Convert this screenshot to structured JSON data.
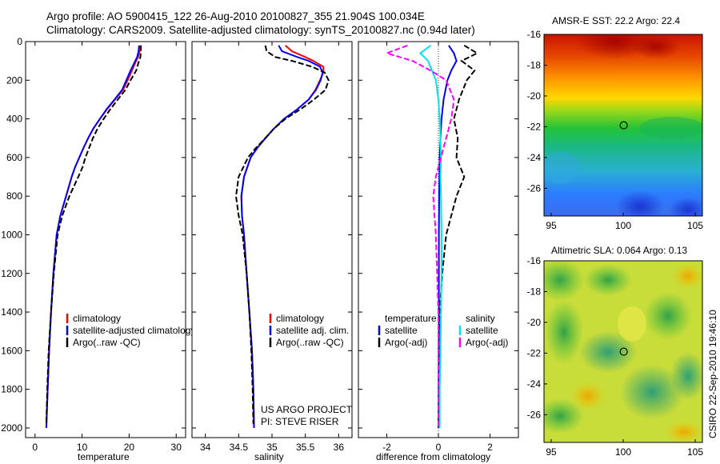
{
  "header": {
    "title_line1": "Argo profile: AO 5900415_122 26-Aug-2010 20100827_355 21.904S 100.034E",
    "title_line2": "Climatology: CARS2009. Satellite-adjusted climatology: synTS_20100827.nc (0.94d later)"
  },
  "side_label": "CSIRO 22-Sep-2010 19:46:10",
  "colors": {
    "climatology": "#ff0000",
    "satellite": "#0000ff",
    "argo": "#000000",
    "satellite_salinity": "#00e5ee",
    "argo_salinity": "#ff00ff"
  },
  "chart_data": [
    {
      "id": "temperature",
      "type": "line",
      "xlabel": "temperature",
      "xlim": [
        -2,
        32
      ],
      "ylim": [
        2050,
        0
      ],
      "xticks": [
        0,
        10,
        20,
        30
      ],
      "yticks": [
        0,
        200,
        400,
        600,
        800,
        1000,
        1200,
        1400,
        1600,
        1800,
        2000
      ],
      "legend": [
        "climatology",
        "satellite-adjusted climatology",
        "Argo(..raw -QC)"
      ],
      "series": [
        {
          "name": "climatology",
          "style": "solid",
          "color": "#ff0000",
          "x": [
            22.3,
            22.2,
            21.9,
            21.5,
            20.6,
            19.7,
            18.7,
            17.0,
            15.3,
            13.8,
            12.4,
            11.3,
            10.3,
            9.4,
            8.5,
            7.8,
            6.6,
            5.4,
            4.6,
            3.9,
            3.4,
            3.0,
            2.7,
            2.4
          ],
          "y": [
            20,
            50,
            80,
            100,
            150,
            200,
            250,
            300,
            350,
            400,
            450,
            500,
            550,
            600,
            650,
            700,
            800,
            900,
            1000,
            1200,
            1400,
            1600,
            1800,
            2000
          ]
        },
        {
          "name": "satellite-adjusted climatology",
          "style": "solid",
          "color": "#0000ff",
          "x": [
            22.1,
            22.0,
            21.7,
            21.3,
            20.3,
            19.4,
            18.5,
            16.9,
            15.2,
            13.8,
            12.4,
            11.3,
            10.3,
            9.4,
            8.5,
            7.8,
            6.6,
            5.4,
            4.6,
            3.9,
            3.4,
            3.0,
            2.7,
            2.4
          ],
          "y": [
            20,
            50,
            80,
            100,
            150,
            200,
            250,
            300,
            350,
            400,
            450,
            500,
            550,
            600,
            650,
            700,
            800,
            900,
            1000,
            1200,
            1400,
            1600,
            1800,
            2000
          ]
        },
        {
          "name": "Argo(..raw -QC)",
          "style": "dashed",
          "color": "#000000",
          "x": [
            22.5,
            22.5,
            22.4,
            22.1,
            21.5,
            20.3,
            19.2,
            17.6,
            16.0,
            14.6,
            13.3,
            12.3,
            11.5,
            10.7,
            10.1,
            9.2,
            7.3,
            5.8,
            4.8,
            4.0,
            3.4,
            2.9,
            2.6,
            2.4
          ],
          "y": [
            20,
            50,
            80,
            100,
            150,
            200,
            250,
            300,
            350,
            400,
            450,
            500,
            550,
            600,
            650,
            700,
            800,
            900,
            1000,
            1200,
            1400,
            1600,
            1800,
            1980
          ]
        }
      ]
    },
    {
      "id": "salinity",
      "type": "line",
      "xlabel": "salinity",
      "xlim": [
        33.8,
        36.2
      ],
      "ylim": [
        2050,
        0
      ],
      "xticks": [
        34,
        34.5,
        35,
        35.5,
        36
      ],
      "legend": [
        "climatology",
        "satellite adj. clim.",
        "Argo(..raw -QC)"
      ],
      "annotations": [
        "US ARGO PROJECT",
        "PI: STEVE RISER"
      ],
      "series": [
        {
          "name": "climatology",
          "style": "solid",
          "color": "#ff0000",
          "x": [
            35.2,
            35.3,
            35.5,
            35.62,
            35.77,
            35.77,
            35.72,
            35.65,
            35.55,
            35.38,
            35.18,
            35.03,
            34.9,
            34.78,
            34.68,
            34.58,
            34.54,
            34.55,
            34.58,
            34.62,
            34.66,
            34.7,
            34.72,
            34.73
          ],
          "y": [
            20,
            50,
            80,
            100,
            130,
            160,
            200,
            250,
            300,
            350,
            400,
            450,
            500,
            550,
            600,
            700,
            800,
            900,
            1000,
            1200,
            1400,
            1600,
            1800,
            2000
          ]
        },
        {
          "name": "satellite adj. clim.",
          "style": "solid",
          "color": "#0000ff",
          "x": [
            35.1,
            35.15,
            35.38,
            35.55,
            35.72,
            35.76,
            35.73,
            35.66,
            35.55,
            35.38,
            35.18,
            35.03,
            34.9,
            34.78,
            34.68,
            34.58,
            34.54,
            34.55,
            34.58,
            34.62,
            34.66,
            34.7,
            34.72,
            34.73
          ],
          "y": [
            20,
            50,
            80,
            100,
            130,
            160,
            200,
            250,
            300,
            350,
            400,
            450,
            500,
            550,
            600,
            700,
            800,
            900,
            1000,
            1200,
            1400,
            1600,
            1800,
            2000
          ]
        },
        {
          "name": "Argo(..raw -QC)",
          "style": "dashed",
          "color": "#000000",
          "x": [
            34.9,
            34.92,
            35.05,
            35.3,
            35.6,
            35.79,
            35.85,
            35.8,
            35.63,
            35.43,
            35.2,
            35.03,
            34.9,
            34.76,
            34.64,
            34.5,
            34.46,
            34.5,
            34.56,
            34.62,
            34.66,
            34.69,
            34.71,
            34.72
          ],
          "y": [
            20,
            50,
            80,
            100,
            130,
            160,
            200,
            250,
            300,
            350,
            400,
            450,
            500,
            550,
            600,
            700,
            800,
            900,
            1000,
            1200,
            1400,
            1600,
            1800,
            1980
          ]
        }
      ]
    },
    {
      "id": "difference",
      "type": "line",
      "xlabel": "difference from climatology",
      "xlim": [
        -3.1,
        3.1
      ],
      "ylim": [
        2050,
        0
      ],
      "xticks": [
        -2,
        0,
        2
      ],
      "legend_groups": [
        {
          "title": "temperature",
          "items": [
            "satellite",
            "Argo(-adj)"
          ]
        },
        {
          "title": "salinity",
          "items": [
            "satellite",
            "Argo(-adj)"
          ]
        }
      ],
      "series": [
        {
          "name": "satellite",
          "group": "temperature",
          "style": "solid",
          "color": "#0000ff",
          "x": [
            0.4,
            0.6,
            0.7,
            0.5,
            0.35,
            0.2,
            0.12,
            0.08,
            0.05,
            0.04,
            0.03,
            0.02,
            0.02,
            0.02,
            0.02,
            0.01,
            0.0
          ],
          "y": [
            20,
            60,
            100,
            150,
            200,
            300,
            400,
            500,
            600,
            700,
            800,
            1000,
            1200,
            1400,
            1600,
            1800,
            2000
          ]
        },
        {
          "name": "Argo(-adj)",
          "group": "temperature",
          "style": "dashed",
          "color": "#000000",
          "x": [
            1.0,
            1.5,
            0.9,
            1.4,
            1.1,
            0.8,
            0.6,
            0.75,
            0.7,
            1.0,
            0.7,
            0.3,
            0.15,
            0.05,
            0.0,
            0.0,
            0.0
          ],
          "y": [
            20,
            60,
            100,
            150,
            200,
            300,
            400,
            500,
            600,
            700,
            800,
            1000,
            1200,
            1400,
            1600,
            1800,
            2000
          ]
        },
        {
          "name": "satellite",
          "group": "salinity",
          "style": "solid",
          "color": "#00e5ee",
          "x": [
            -0.3,
            -0.7,
            -0.4,
            -0.25,
            -0.1,
            0.0,
            0.05,
            0.08,
            0.1,
            0.08,
            0.1,
            0.12,
            0.12,
            0.1,
            0.08,
            0.05,
            0.05
          ],
          "y": [
            20,
            60,
            100,
            150,
            200,
            300,
            400,
            500,
            600,
            700,
            800,
            1000,
            1200,
            1400,
            1600,
            1800,
            2000
          ]
        },
        {
          "name": "Argo(-adj)",
          "group": "salinity",
          "style": "dashed",
          "color": "#ff00ff",
          "x": [
            -1.2,
            -2.0,
            -1.0,
            -0.3,
            0.3,
            0.6,
            0.5,
            0.3,
            0.1,
            -0.1,
            -0.2,
            -0.1,
            -0.05,
            0.0,
            0.0,
            0.0,
            0.0
          ],
          "y": [
            20,
            60,
            100,
            150,
            200,
            300,
            400,
            500,
            600,
            700,
            800,
            1000,
            1200,
            1400,
            1600,
            1800,
            2000
          ]
        }
      ]
    },
    {
      "id": "sst_map",
      "type": "heatmap",
      "title": "AMSR-E SST: 22.2 Argo: 22.4",
      "xlim": [
        94.5,
        105.5
      ],
      "ylim": [
        -27.8,
        -16
      ],
      "xticks": [
        95,
        100,
        105
      ],
      "yticks": [
        -16,
        -18,
        -20,
        -22,
        -24,
        -26
      ],
      "marker": {
        "x": 100.034,
        "y": -21.904
      }
    },
    {
      "id": "sla_map",
      "type": "heatmap",
      "title": "Altimetric SLA: 0.064 Argo: 0.13",
      "xlim": [
        94.5,
        105.5
      ],
      "ylim": [
        -27.8,
        -16
      ],
      "xticks": [
        95,
        100,
        105
      ],
      "yticks": [
        -16,
        -18,
        -20,
        -22,
        -24,
        -26
      ],
      "marker": {
        "x": 100.034,
        "y": -21.904
      }
    }
  ]
}
